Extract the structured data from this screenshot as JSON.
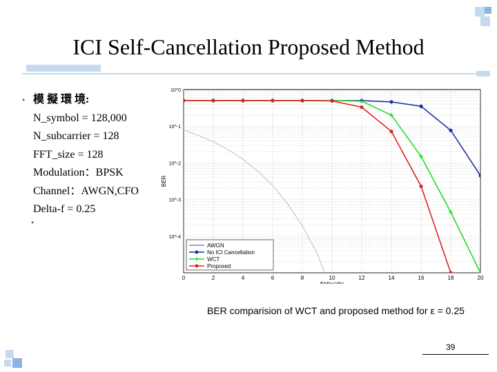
{
  "slide": {
    "title": "ICI Self-Cancellation Proposed Method",
    "bullet_head": "模 擬 環 境:",
    "bullet_symbol": "•",
    "lines": [
      "N_symbol = 128,000",
      "N_subcarrier = 128",
      "FFT_size = 128",
      "Modulation：BPSK",
      "Channel：AWGN,CFO",
      "Delta-f = 0.25"
    ],
    "empty_bullet": "•",
    "caption": "BER comparision of WCT and proposed method for ε = 0.25",
    "page_number": "39"
  },
  "colors": {
    "accent_light": "#c5d9f1",
    "accent_dark": "#8db3e2",
    "awgn": "#8080c0",
    "no_ici": "#1a2ea8",
    "wct": "#22dd22",
    "proposed": "#dd2222"
  },
  "chart_data": {
    "type": "line",
    "xlabel": "EbNo(db)",
    "ylabel": "BER",
    "xlim": [
      0,
      20
    ],
    "ylim": [
      1e-05,
      1
    ],
    "yscale": "log",
    "grid": true,
    "legend_position": "bottom-left",
    "x_ticks": [
      "0",
      "2",
      "4",
      "6",
      "8",
      "10",
      "12",
      "14",
      "16",
      "18",
      "20"
    ],
    "y_ticks": [
      "10^0",
      "10^-1",
      "10^-2",
      "10^-3",
      "10^-4"
    ],
    "x": [
      0,
      2,
      4,
      6,
      8,
      10,
      12,
      14,
      16,
      18,
      20
    ],
    "series": [
      {
        "name": "AWGN",
        "marker": "none",
        "color": "#8080c0",
        "x": [
          0,
          1,
          2,
          3,
          4,
          5,
          6,
          7,
          8,
          8.5,
          9,
          9.5
        ],
        "values": [
          0.079,
          0.056,
          0.0375,
          0.023,
          0.0125,
          0.006,
          0.0024,
          0.00077,
          0.00019,
          8e-05,
          3.4e-05,
          1e-05
        ]
      },
      {
        "name": "No ICI Cancellation",
        "marker": "circle",
        "color": "#1a2ea8",
        "values": [
          0.5,
          0.5,
          0.5,
          0.5,
          0.5,
          0.5,
          0.5,
          0.46,
          0.35,
          0.077,
          0.0045
        ]
      },
      {
        "name": "WCT",
        "marker": "plus",
        "color": "#22dd22",
        "values": [
          0.5,
          0.5,
          0.5,
          0.5,
          0.5,
          0.5,
          0.48,
          0.2,
          0.015,
          0.00045,
          1e-05
        ]
      },
      {
        "name": "Proposed",
        "marker": "circle",
        "color": "#dd2222",
        "values": [
          0.5,
          0.5,
          0.5,
          0.5,
          0.5,
          0.49,
          0.33,
          0.072,
          0.0023,
          1e-05,
          1e-06
        ]
      }
    ]
  }
}
